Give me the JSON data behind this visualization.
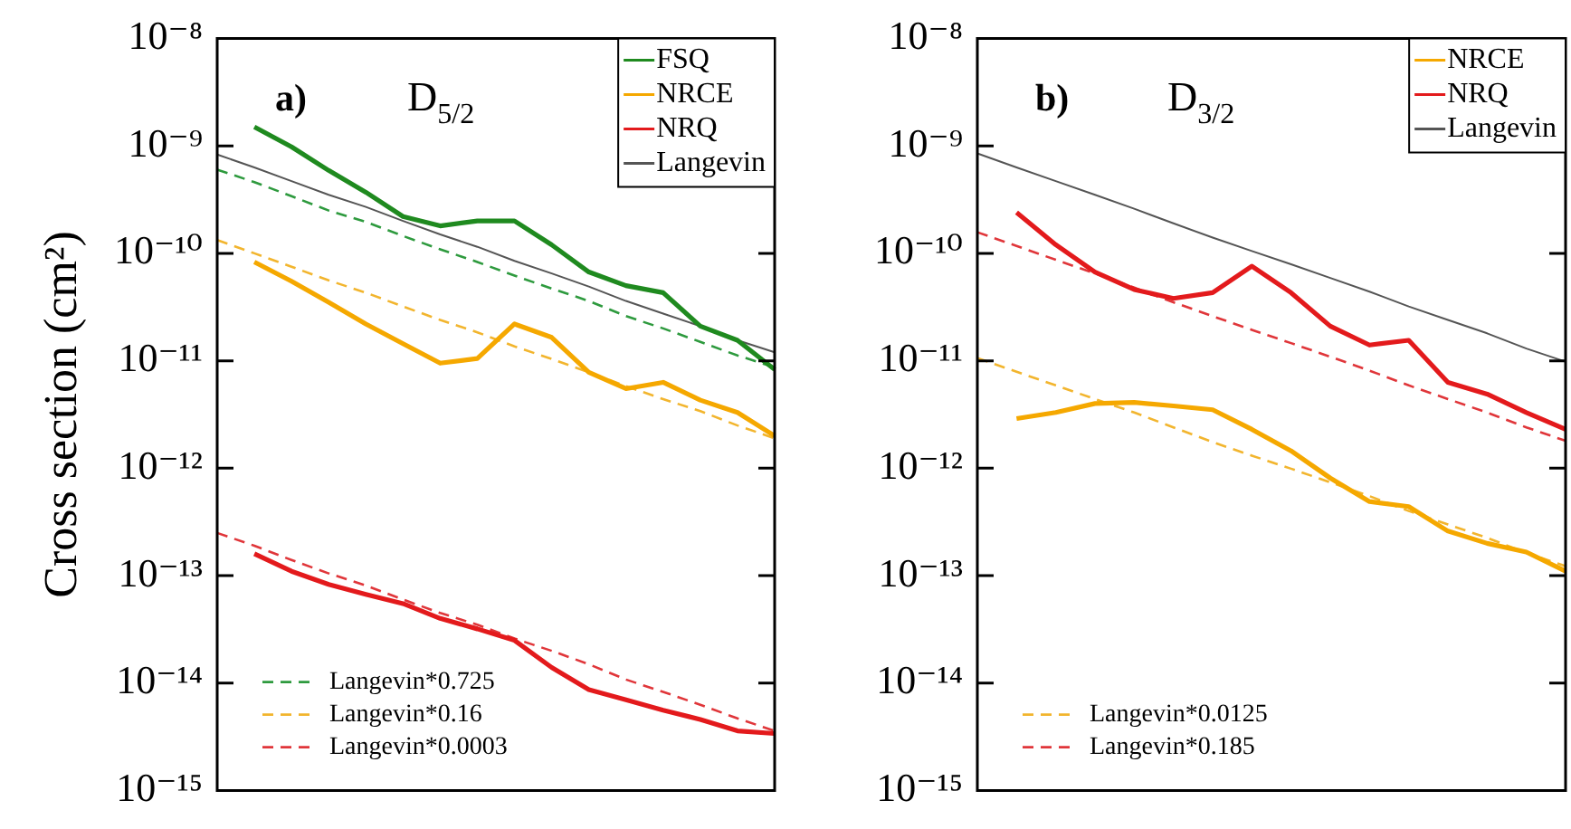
{
  "chart_data": [
    {
      "type": "line",
      "title": "D$_{5/2}$",
      "annotations": [
        "a)"
      ],
      "ylabel": "Cross section (cm²)",
      "log": "y",
      "legend": "top right",
      "categories": [
        null,
        null,
        null,
        null,
        null,
        null,
        null,
        null,
        null,
        null,
        null,
        null,
        null,
        null,
        null,
        null
      ],
      "ylim": [
        1e-15,
        1e-08
      ],
      "yticks": [
        {
          "value": 1e-15,
          "label": "10⁻¹⁵"
        },
        {
          "value": 1e-14,
          "label": "10⁻¹⁴"
        },
        {
          "value": 1e-13,
          "label": "10⁻¹³"
        },
        {
          "value": 1e-12,
          "label": "10⁻¹²"
        },
        {
          "value": 1e-11,
          "label": "10⁻¹¹"
        },
        {
          "value": 1e-10,
          "label": "10⁻¹⁰"
        },
        {
          "value": 1e-09,
          "label": "10⁻⁹"
        },
        {
          "value": 1e-08,
          "label": "10⁻⁸"
        }
      ],
      "series": [
        {
          "name": "FSQ",
          "color": "#1f8a1f",
          "values": [
            null,
            1.5e-09,
            9.8e-10,
            5.9e-10,
            3.7e-10,
            2.2e-10,
            1.8e-10,
            2e-10,
            2e-10,
            1.2e-10,
            6.7e-11,
            5e-11,
            4.3e-11,
            2.1e-11,
            1.55e-11,
            8.3e-12
          ]
        },
        {
          "name": "NRCE",
          "color": "#f5a800",
          "values": [
            null,
            8.3e-11,
            5.5e-11,
            3.5e-11,
            2.2e-11,
            1.44e-11,
            9.5e-12,
            1.05e-11,
            2.2e-11,
            1.65e-11,
            7.8e-12,
            5.5e-12,
            6.3e-12,
            4.3e-12,
            3.3e-12,
            2e-12
          ]
        },
        {
          "name": "NRQ",
          "color": "#e31a1c",
          "values": [
            null,
            1.6e-13,
            1.1e-13,
            8.3e-14,
            6.7e-14,
            5.5e-14,
            4e-14,
            3.2e-14,
            2.5e-14,
            1.4e-14,
            8.7e-15,
            7e-15,
            5.6e-15,
            4.6e-15,
            3.6e-15,
            3.4e-15
          ]
        },
        {
          "name": "Langevin",
          "color": "#555555",
          "values": [
            8.3e-10,
            6.3e-10,
            4.7e-10,
            3.5e-10,
            2.7e-10,
            2e-10,
            1.5e-10,
            1.15e-10,
            8.5e-11,
            6.5e-11,
            4.9e-11,
            3.6e-11,
            2.75e-11,
            2.1e-11,
            1.55e-11,
            1.2e-11
          ]
        },
        {
          "name": "Langevin*0.725",
          "color": "#2e9a3e",
          "line_style": "dashed",
          "values": [
            6e-10,
            4.6e-10,
            3.4e-10,
            2.5e-10,
            1.96e-10,
            1.45e-10,
            1.09e-10,
            8.3e-11,
            6.2e-11,
            4.7e-11,
            3.6e-11,
            2.6e-11,
            2e-11,
            1.5e-11,
            1.12e-11,
            8.7e-12
          ]
        },
        {
          "name": "Langevin*0.16",
          "color": "#f2b52e",
          "line_style": "dashed",
          "values": [
            1.33e-10,
            1e-10,
            7.5e-11,
            5.6e-11,
            4.3e-11,
            3.2e-11,
            2.4e-11,
            1.84e-11,
            1.36e-11,
            1.04e-11,
            7.8e-12,
            5.8e-12,
            4.4e-12,
            3.4e-12,
            2.5e-12,
            1.9e-12
          ]
        },
        {
          "name": "Langevin*0.0003",
          "color": "#e0363a",
          "line_style": "dashed",
          "values": [
            2.5e-13,
            1.9e-13,
            1.4e-13,
            1.05e-13,
            8.1e-14,
            6e-14,
            4.5e-14,
            3.5e-14,
            2.6e-14,
            2e-14,
            1.5e-14,
            1.08e-14,
            8.3e-15,
            6.3e-15,
            4.7e-15,
            3.6e-15
          ]
        }
      ]
    },
    {
      "type": "line",
      "title": "D$_{3/2}$",
      "annotations": [
        "b)"
      ],
      "log": "y",
      "legend": "top right",
      "categories": [
        null,
        null,
        null,
        null,
        null,
        null,
        null,
        null,
        null,
        null,
        null,
        null,
        null,
        null,
        null,
        null
      ],
      "ylim": [
        1e-15,
        1e-08
      ],
      "yticks": [
        {
          "value": 1e-15,
          "label": "10⁻¹⁵"
        },
        {
          "value": 1e-14,
          "label": "10⁻¹⁴"
        },
        {
          "value": 1e-13,
          "label": "10⁻¹³"
        },
        {
          "value": 1e-12,
          "label": "10⁻¹²"
        },
        {
          "value": 1e-11,
          "label": "10⁻¹¹"
        },
        {
          "value": 1e-10,
          "label": "10⁻¹⁰"
        },
        {
          "value": 1e-09,
          "label": "10⁻⁹"
        },
        {
          "value": 1e-08,
          "label": "10⁻⁸"
        }
      ],
      "series": [
        {
          "name": "NRCE",
          "color": "#f5a800",
          "values": [
            null,
            2.9e-12,
            3.3e-12,
            4e-12,
            4.1e-12,
            3.8e-12,
            3.5e-12,
            2.3e-12,
            1.45e-12,
            8.1e-13,
            4.9e-13,
            4.4e-13,
            2.6e-13,
            2e-13,
            1.66e-13,
            1.1e-13
          ]
        },
        {
          "name": "NRQ",
          "color": "#e31a1c",
          "values": [
            null,
            2.4e-10,
            1.2e-10,
            6.7e-11,
            4.6e-11,
            3.8e-11,
            4.3e-11,
            7.6e-11,
            4.3e-11,
            2.1e-11,
            1.4e-11,
            1.55e-11,
            6.3e-12,
            4.9e-12,
            3.3e-12,
            2.3e-12
          ]
        },
        {
          "name": "Langevin",
          "color": "#555555",
          "values": [
            8.5e-10,
            6.3e-10,
            4.7e-10,
            3.5e-10,
            2.6e-10,
            1.9e-10,
            1.4e-10,
            1.05e-10,
            7.9e-11,
            5.9e-11,
            4.4e-11,
            3.2e-11,
            2.4e-11,
            1.8e-11,
            1.3e-11,
            9.8e-12
          ]
        },
        {
          "name": "Langevin*0.0125",
          "color": "#f2b52e",
          "line_style": "dashed",
          "values": [
            1.06e-11,
            7.9e-12,
            5.9e-12,
            4.4e-12,
            3.3e-12,
            2.4e-12,
            1.75e-12,
            1.31e-12,
            9.9e-13,
            7.4e-13,
            5.5e-13,
            4e-13,
            3e-13,
            2.25e-13,
            1.63e-13,
            1.23e-13
          ]
        },
        {
          "name": "Langevin*0.185",
          "color": "#e0363a",
          "line_style": "dashed",
          "values": [
            1.57e-10,
            1.17e-10,
            8.7e-11,
            6.5e-11,
            4.8e-11,
            3.5e-11,
            2.6e-11,
            1.94e-11,
            1.46e-11,
            1.09e-11,
            8.1e-12,
            5.9e-12,
            4.4e-12,
            3.3e-12,
            2.4e-12,
            1.8e-12
          ]
        }
      ]
    }
  ]
}
